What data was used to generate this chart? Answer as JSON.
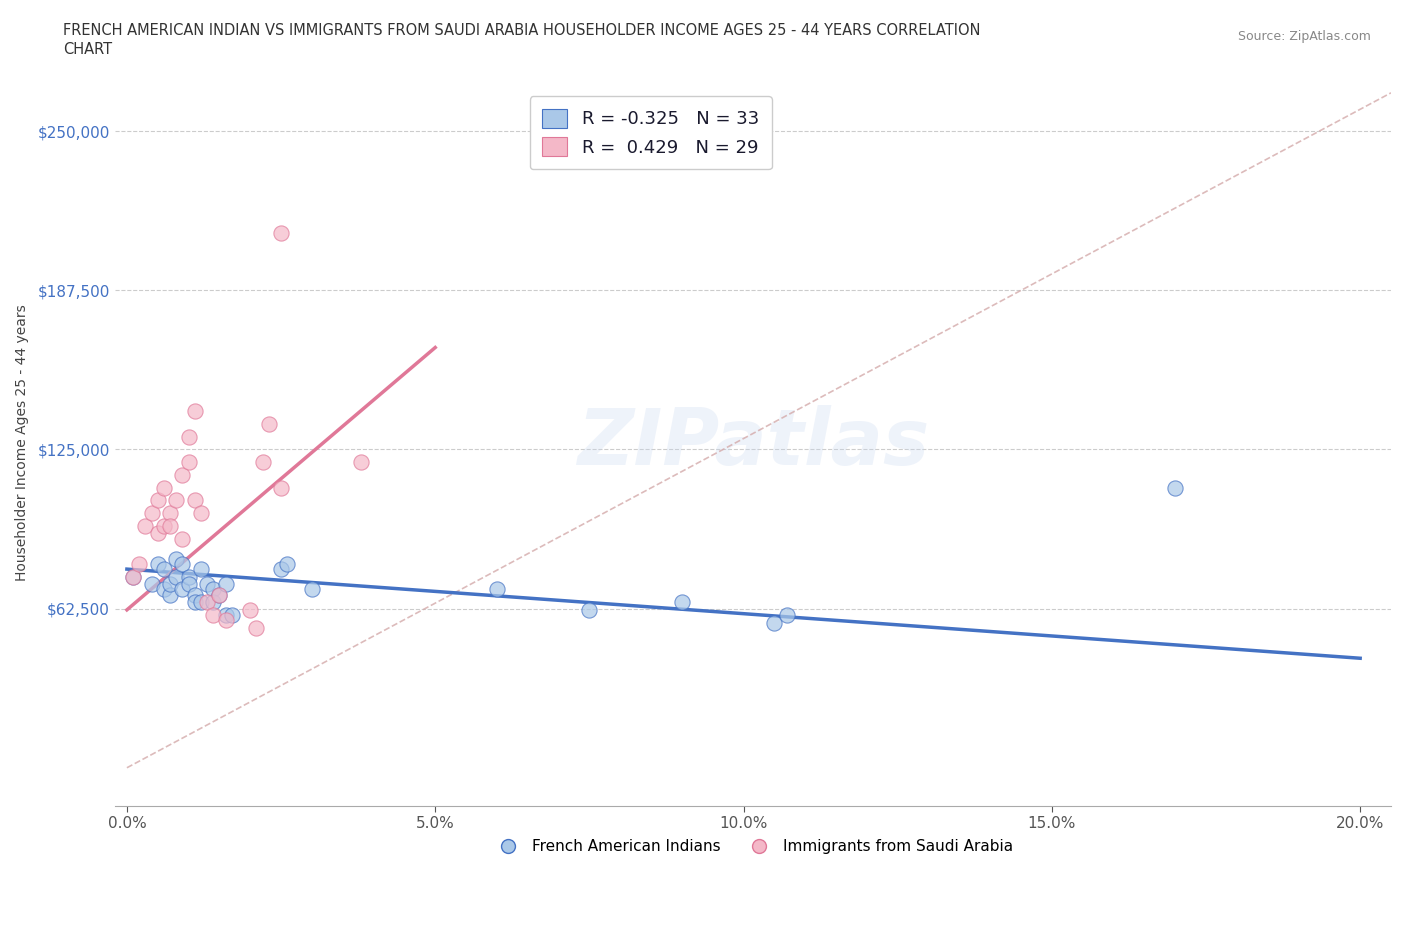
{
  "title": "FRENCH AMERICAN INDIAN VS IMMIGRANTS FROM SAUDI ARABIA HOUSEHOLDER INCOME AGES 25 - 44 YEARS CORRELATION\nCHART",
  "source": "Source: ZipAtlas.com",
  "ylabel": "Householder Income Ages 25 - 44 years",
  "xlim": [
    -0.002,
    0.205
  ],
  "ylim": [
    -15000,
    270000
  ],
  "xticks": [
    0.0,
    0.05,
    0.1,
    0.15,
    0.2
  ],
  "xticklabels": [
    "0.0%",
    "5.0%",
    "10.0%",
    "15.0%",
    "20.0%"
  ],
  "yticks": [
    62500,
    125000,
    187500,
    250000
  ],
  "yticklabels": [
    "$62,500",
    "$125,000",
    "$187,500",
    "$250,000"
  ],
  "ytick_color": "#4472c4",
  "blue_R": -0.325,
  "blue_N": 33,
  "pink_R": 0.429,
  "pink_N": 29,
  "blue_color": "#aac8e8",
  "pink_color": "#f4b8c8",
  "blue_edge_color": "#4472c4",
  "pink_edge_color": "#e07898",
  "blue_line_color": "#4472c4",
  "pink_line_color": "#e07898",
  "ref_line_color": "#d4aaaa",
  "watermark": "ZIPatlas",
  "blue_scatter_x": [
    0.001,
    0.004,
    0.005,
    0.006,
    0.006,
    0.007,
    0.007,
    0.008,
    0.008,
    0.009,
    0.009,
    0.01,
    0.01,
    0.011,
    0.011,
    0.012,
    0.012,
    0.013,
    0.014,
    0.014,
    0.015,
    0.016,
    0.016,
    0.017,
    0.025,
    0.026,
    0.03,
    0.06,
    0.075,
    0.09,
    0.105,
    0.107,
    0.17
  ],
  "blue_scatter_y": [
    75000,
    72000,
    80000,
    78000,
    70000,
    68000,
    72000,
    82000,
    75000,
    80000,
    70000,
    75000,
    72000,
    68000,
    65000,
    78000,
    65000,
    72000,
    70000,
    65000,
    68000,
    60000,
    72000,
    60000,
    78000,
    80000,
    70000,
    70000,
    62000,
    65000,
    57000,
    60000,
    110000
  ],
  "pink_scatter_x": [
    0.001,
    0.002,
    0.003,
    0.004,
    0.005,
    0.005,
    0.006,
    0.006,
    0.007,
    0.007,
    0.008,
    0.009,
    0.009,
    0.01,
    0.01,
    0.011,
    0.011,
    0.012,
    0.013,
    0.014,
    0.015,
    0.016,
    0.02,
    0.021,
    0.022,
    0.023,
    0.025,
    0.038,
    0.025
  ],
  "pink_scatter_y": [
    75000,
    80000,
    95000,
    100000,
    92000,
    105000,
    95000,
    110000,
    100000,
    95000,
    105000,
    90000,
    115000,
    120000,
    130000,
    140000,
    105000,
    100000,
    65000,
    60000,
    68000,
    58000,
    62000,
    55000,
    120000,
    135000,
    110000,
    120000,
    210000
  ],
  "blue_trend_x0": 0.0,
  "blue_trend_y0": 78000,
  "blue_trend_x1": 0.2,
  "blue_trend_y1": 43000,
  "pink_trend_x0": 0.0,
  "pink_trend_y0": 62000,
  "pink_trend_x1": 0.05,
  "pink_trend_y1": 165000
}
